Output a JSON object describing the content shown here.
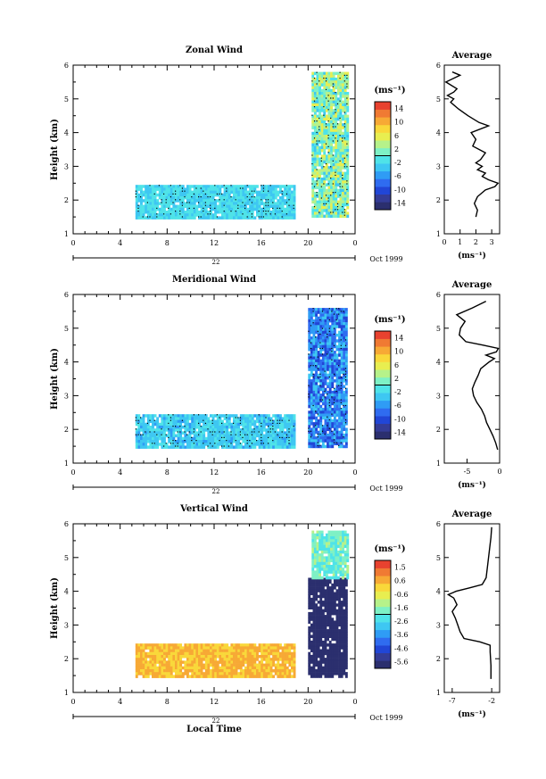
{
  "chart_data": {
    "type": "heatmap",
    "date_label": "Oct 1999",
    "day_label": "22",
    "xlabel": "Local Time",
    "ylabel": "Height (km)",
    "unit_label": "(ms⁻¹)",
    "x_ticks": [
      "0",
      "4",
      "8",
      "12",
      "16",
      "20",
      "0"
    ],
    "xlim": [
      0,
      24
    ],
    "ylim": [
      1,
      6
    ],
    "y_ticks": [
      "1",
      "2",
      "3",
      "4",
      "5",
      "6"
    ],
    "panels": [
      {
        "title": "Zonal Wind",
        "colorbar": {
          "ticks": [
            "14",
            "10",
            "6",
            "2",
            "-2",
            "-6",
            "-10",
            "-14"
          ],
          "range": [
            -16,
            16
          ]
        },
        "low_layer": {
          "x_range": [
            5.3,
            18.8
          ],
          "h_range": [
            1.45,
            2.45
          ],
          "value_range": [
            -4,
            0
          ]
        },
        "upper_layer": {
          "x_range": [
            20.3,
            23.3
          ],
          "h_range": [
            1.5,
            5.8
          ],
          "value_range": [
            -3,
            6
          ]
        },
        "average": {
          "title": "Average",
          "x_ticks": [
            "0",
            "1",
            "2",
            "3"
          ],
          "xlim": [
            0,
            3.5
          ],
          "xlabel": "(ms⁻¹)",
          "profile_h": [
            1.5,
            1.7,
            1.9,
            2.1,
            2.3,
            2.4,
            2.5,
            2.6,
            2.7,
            2.8,
            2.9,
            3.0,
            3.1,
            3.2,
            3.4,
            3.6,
            3.8,
            4.0,
            4.2,
            4.3,
            4.5,
            4.7,
            4.9,
            5.0,
            5.1,
            5.2,
            5.3,
            5.5,
            5.7,
            5.8
          ],
          "profile_v": [
            2.0,
            2.1,
            1.9,
            2.1,
            2.6,
            3.2,
            3.4,
            2.8,
            2.4,
            2.6,
            2.1,
            2.4,
            2.0,
            2.3,
            2.6,
            1.8,
            2.0,
            1.7,
            2.8,
            2.2,
            1.5,
            0.9,
            0.4,
            0.6,
            0.2,
            0.6,
            0.8,
            0.1,
            1.0,
            0.5
          ]
        }
      },
      {
        "title": "Meridional Wind",
        "colorbar": {
          "ticks": [
            "14",
            "10",
            "6",
            "2",
            "-2",
            "-6",
            "-10",
            "-14"
          ],
          "range": [
            -16,
            16
          ]
        },
        "low_layer": {
          "x_range": [
            5.3,
            18.8
          ],
          "h_range": [
            1.45,
            2.45
          ],
          "value_range": [
            -5,
            -1
          ]
        },
        "upper_layer": {
          "x_range": [
            20.0,
            23.3
          ],
          "h_range": [
            1.5,
            5.6
          ],
          "value_range": [
            -11,
            -3
          ]
        },
        "average": {
          "title": "Average",
          "x_ticks": [
            "-5",
            "0"
          ],
          "xlim": [
            -8.5,
            0
          ],
          "xlabel": "(ms⁻¹)",
          "profile_h": [
            1.4,
            1.6,
            1.8,
            2.0,
            2.2,
            2.4,
            2.6,
            2.8,
            3.0,
            3.2,
            3.4,
            3.6,
            3.8,
            4.0,
            4.1,
            4.2,
            4.3,
            4.4,
            4.5,
            4.6,
            4.8,
            5.0,
            5.2,
            5.4,
            5.6,
            5.8
          ],
          "profile_v": [
            -0.3,
            -0.6,
            -1.0,
            -1.5,
            -2.0,
            -2.3,
            -2.8,
            -3.5,
            -4.0,
            -4.2,
            -3.8,
            -3.3,
            -2.9,
            -1.6,
            -0.8,
            -2.1,
            -0.5,
            -0.2,
            -2.6,
            -5.2,
            -6.2,
            -6.0,
            -5.3,
            -6.6,
            -4.2,
            -2.1
          ]
        }
      },
      {
        "title": "Vertical Wind",
        "colorbar": {
          "ticks": [
            "1.5",
            "0.6",
            "-0.6",
            "-1.6",
            "-2.6",
            "-3.6",
            "-4.6",
            "-5.6"
          ],
          "range": [
            -6,
            2
          ]
        },
        "low_layer": {
          "x_range": [
            5.3,
            18.8
          ],
          "h_range": [
            1.45,
            2.45
          ],
          "value_range": [
            0.1,
            0.6
          ]
        },
        "upper_layer": {
          "x_range": [
            20.0,
            23.3
          ],
          "h_range": [
            1.5,
            4.4
          ],
          "value": -5.8
        },
        "top_layer": {
          "x_range": [
            20.3,
            23.3
          ],
          "h_range": [
            4.4,
            5.8
          ],
          "value_range": [
            -2.5,
            -1.2
          ]
        },
        "average": {
          "title": "Average",
          "x_ticks": [
            "-7",
            "-2"
          ],
          "xlim": [
            -8,
            -1
          ],
          "xlabel": "(ms⁻¹)",
          "profile_h": [
            1.4,
            1.8,
            2.2,
            2.4,
            2.5,
            2.6,
            2.8,
            3.0,
            3.2,
            3.4,
            3.6,
            3.8,
            3.9,
            4.0,
            4.1,
            4.2,
            4.4,
            4.8,
            5.2,
            5.6,
            5.9
          ],
          "profile_v": [
            -2.1,
            -2.1,
            -2.2,
            -2.2,
            -3.5,
            -5.5,
            -6.0,
            -6.3,
            -6.6,
            -7.0,
            -6.4,
            -6.8,
            -7.5,
            -6.5,
            -4.8,
            -3.2,
            -2.7,
            -2.5,
            -2.3,
            -2.1,
            -2.0
          ]
        }
      }
    ]
  }
}
